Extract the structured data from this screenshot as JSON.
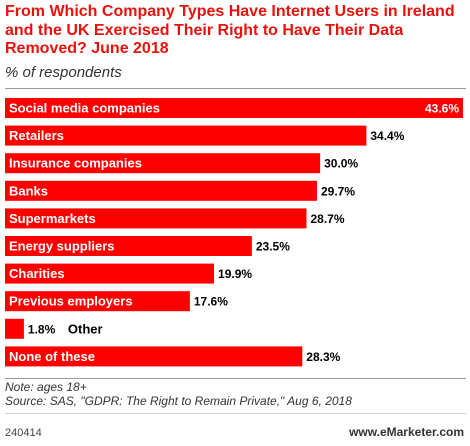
{
  "title": "From Which Company Types Have Internet Users in Ireland and the UK Exercised Their Right to Have Their Data Removed? June 2018",
  "subtitle": "% of respondents",
  "notes": {
    "note": "Note: ages 18+",
    "source": "Source: SAS, \"GDPR: The Right to Remain Private,\" Aug 6, 2018"
  },
  "footer": {
    "id": "240414",
    "brand": "www.eMarketer.com"
  },
  "colors": {
    "bar": "#ff0000",
    "title": "#e8120c"
  },
  "chart_data": {
    "type": "bar",
    "orientation": "horizontal",
    "title": "From Which Company Types Have Internet Users in Ireland and the UK Exercised Their Right to Have Their Data Removed? June 2018",
    "subtitle": "% of respondents",
    "categories": [
      "Social media companies",
      "Retailers",
      "Insurance companies",
      "Banks",
      "Supermarkets",
      "Energy suppliers",
      "Charities",
      "Previous employers",
      "Other",
      "None of these"
    ],
    "values": [
      43.6,
      34.4,
      30.0,
      29.7,
      28.7,
      23.5,
      19.9,
      17.6,
      1.8,
      28.3
    ],
    "value_labels": [
      "43.6%",
      "34.4%",
      "30.0%",
      "29.7%",
      "28.7%",
      "23.5%",
      "19.9%",
      "17.6%",
      "1.8%",
      "28.3%"
    ],
    "xlim": [
      0,
      43.6
    ],
    "grid": false,
    "legend": "none"
  }
}
